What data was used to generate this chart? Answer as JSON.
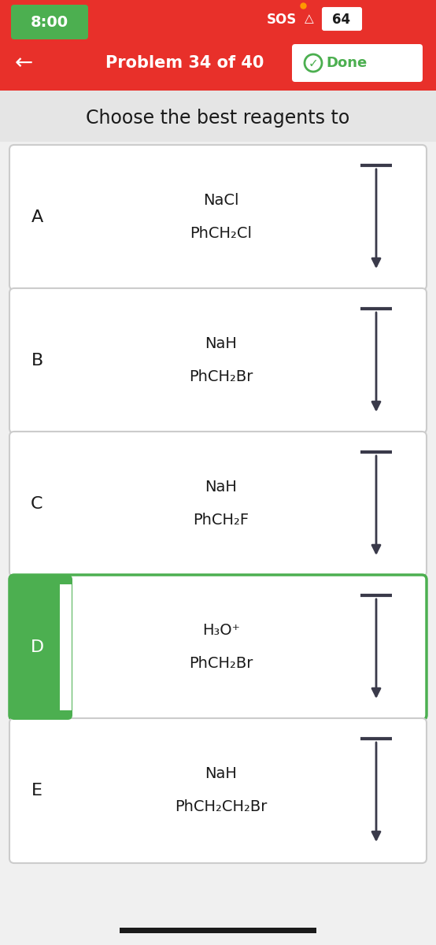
{
  "bg_color": "#f0f0f0",
  "header_color": "#e8302a",
  "timer_text": "8:00",
  "timer_bg": "#4caf50",
  "sos_text": "SOS",
  "battery_text": "64",
  "nav_text": "Problem 34 of 40",
  "done_text": "Done",
  "subtitle": "Choose the best reagents to",
  "options": [
    {
      "label": "A",
      "line1": "NaCl",
      "line2": "PhCH₂Cl",
      "selected": false,
      "label_bg": null
    },
    {
      "label": "B",
      "line1": "NaH",
      "line2": "PhCH₂Br",
      "selected": false,
      "label_bg": null
    },
    {
      "label": "C",
      "line1": "NaH",
      "line2": "PhCH₂F",
      "selected": false,
      "label_bg": null
    },
    {
      "label": "D",
      "line1": "H₃O⁺",
      "line2": "PhCH₂Br",
      "selected": true,
      "label_bg": "#4caf50"
    },
    {
      "label": "E",
      "line1": "NaH",
      "line2": "PhCH₂CH₂Br",
      "selected": false,
      "label_bg": null
    }
  ],
  "arrow_color": "#3a3a4a",
  "box_border_color": "#cccccc",
  "box_border_selected": "#4caf50",
  "text_color": "#1a1a1a",
  "label_text_color_default": "#1a1a1a",
  "label_text_color_selected": "#ffffff"
}
